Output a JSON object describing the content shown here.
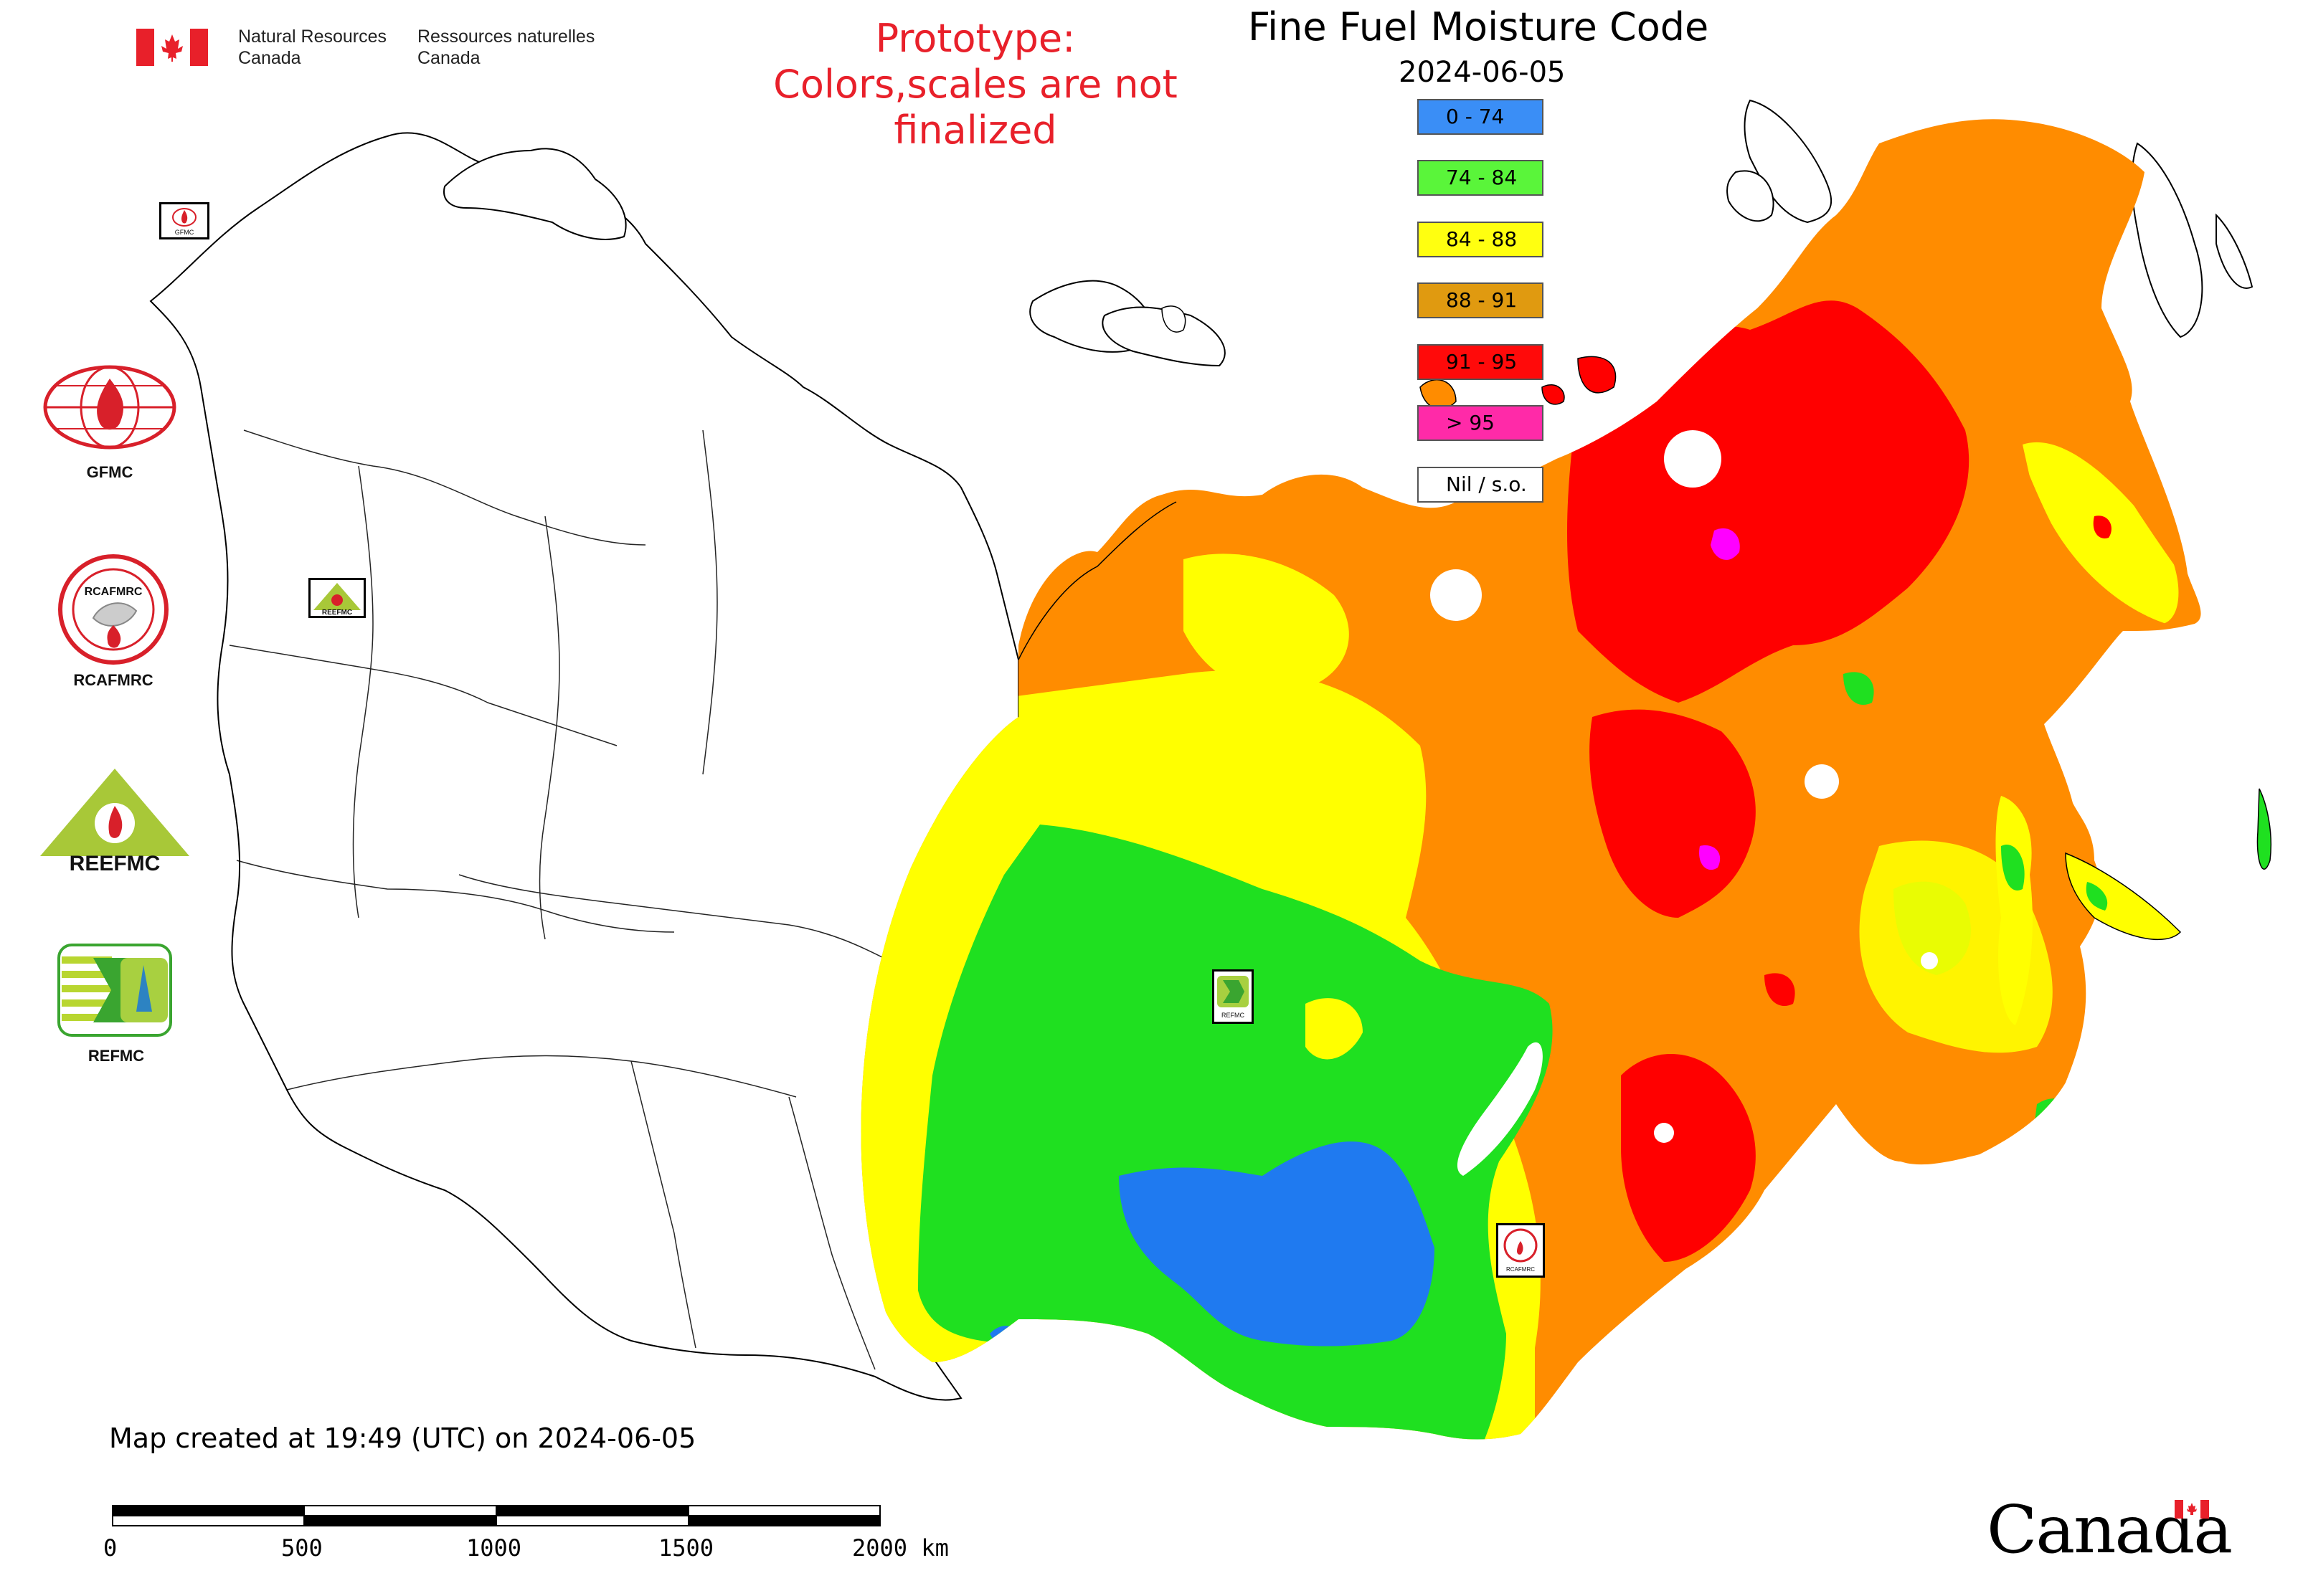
{
  "header": {
    "title": "Fine Fuel Moisture Code",
    "date": "2024-06-05",
    "prototype_line1": "Prototype:",
    "prototype_line2": "Colors,scales are not finalized"
  },
  "agency": {
    "name_en_1": "Natural Resources",
    "name_en_2": "Canada",
    "name_fr_1": "Ressources naturelles",
    "name_fr_2": "Canada",
    "wordmark": "Canada"
  },
  "legend": [
    {
      "label": "0 - 74",
      "color": "#3a8ef6"
    },
    {
      "label": "74 - 84",
      "color": "#5af53a"
    },
    {
      "label": "84 - 88",
      "color": "#ffff10"
    },
    {
      "label": "88 - 91",
      "color": "#e09a10"
    },
    {
      "label": "91 - 95",
      "color": "#ff0a0a"
    },
    {
      "label": "> 95",
      "color": "#ff2aa8"
    },
    {
      "label": "Nil / s.o.",
      "color": "#ffffff"
    }
  ],
  "logos": [
    {
      "label": "GFMC",
      "icon": "gfmc-globe-logo-icon"
    },
    {
      "label": "RCAFMRC",
      "icon": "rcafmrc-round-seal-icon"
    },
    {
      "label": "",
      "icon": "reefmc-triangle-logo-icon",
      "wordmark": "REEFMC"
    },
    {
      "label": "REFMC",
      "icon": "refmc-green-logo-icon"
    }
  ],
  "map_markers": {
    "gfmc": "GFMC",
    "reefmc": "REEFMC",
    "refmc": "REFMC",
    "rcafmrc": "RCAFMRC"
  },
  "footer": {
    "created": "Map created at 19:49 (UTC) on 2024-06-05",
    "scale_labels": [
      "0",
      "500",
      "1000",
      "1500",
      "2000 km"
    ]
  },
  "colors": {
    "prototype_text": "#e8202a",
    "blue": "#1f7af0",
    "green": "#1fe020",
    "yellow": "#ffff00",
    "orange": "#ff8c00",
    "red": "#ff0000",
    "magenta": "#ff00ff"
  }
}
